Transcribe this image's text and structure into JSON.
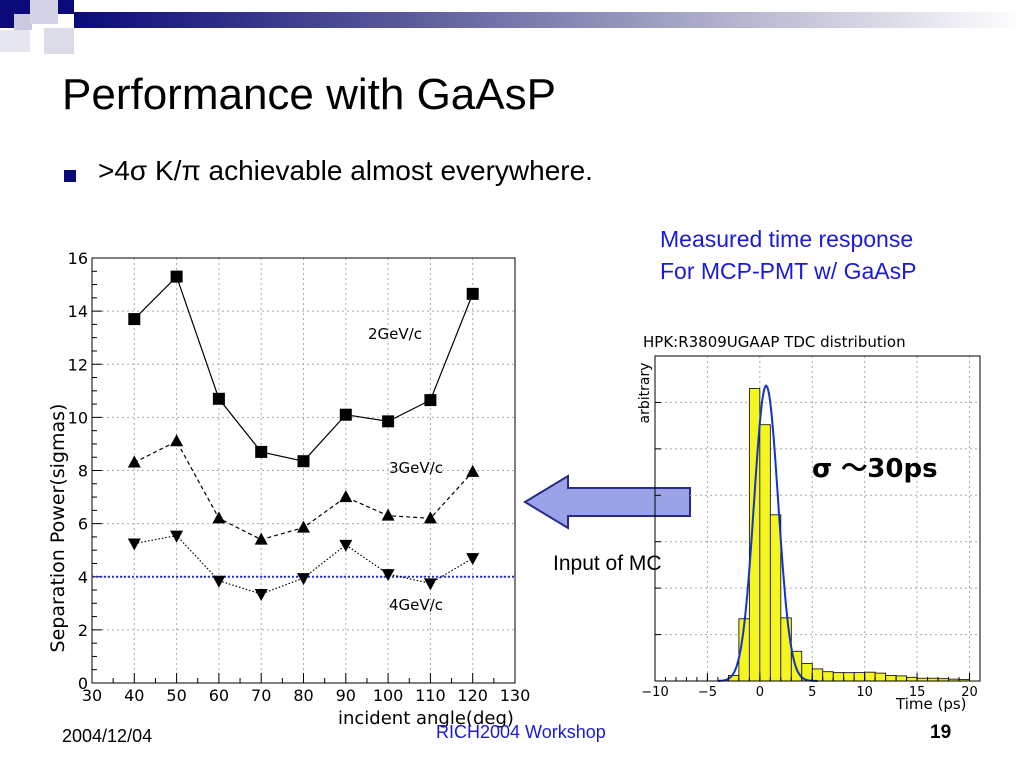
{
  "slide": {
    "title": "Performance with GaAsP",
    "bullet": ">4σ K/π achievable almost everywhere.",
    "measured_line1": "Measured time response",
    "measured_line2": "For MCP-PMT w/ GaAsP",
    "input_mc": "Input of MC",
    "footer_date": "2004/12/04",
    "footer_center": "RICH2004 Workshop",
    "page_number": "19",
    "colors": {
      "header_accent": "#0a0a7a",
      "blue_text": "#1a1ad8",
      "arrow_fill": "#9aa3e8",
      "hist_fill": "#f5f522",
      "threshold": "#2233cc"
    }
  },
  "chart_data": [
    {
      "type": "line",
      "xlabel": "incident angle(deg)",
      "ylabel": "Separation Power(sigmas)",
      "xlim": [
        30,
        130
      ],
      "ylim": [
        0,
        16
      ],
      "xticks": [
        30,
        40,
        50,
        60,
        70,
        80,
        90,
        100,
        110,
        120,
        130
      ],
      "yticks": [
        0,
        2,
        4,
        6,
        8,
        10,
        12,
        14,
        16
      ],
      "grid": true,
      "x": [
        40,
        50,
        60,
        70,
        80,
        90,
        100,
        110,
        120
      ],
      "series": [
        {
          "name": "2GeV/c",
          "marker": "square",
          "line": "solid",
          "values": [
            13.7,
            15.3,
            10.7,
            8.7,
            8.35,
            10.1,
            9.85,
            10.65,
            14.65
          ]
        },
        {
          "name": "3GeV/c",
          "marker": "triangle-up",
          "line": "dashed",
          "values": [
            8.3,
            9.1,
            6.2,
            5.4,
            5.85,
            7.0,
            6.3,
            6.2,
            7.95
          ]
        },
        {
          "name": "4GeV/c",
          "marker": "triangle-down",
          "line": "dotted",
          "values": [
            5.25,
            5.55,
            3.85,
            3.35,
            3.95,
            5.2,
            4.1,
            3.75,
            4.7
          ]
        }
      ],
      "threshold": 4
    },
    {
      "type": "bar",
      "title": "HPK:R3809UGAAP TDC distribution",
      "xlabel": "Time (ps)",
      "ylabel": "arbitrary",
      "xlim": [
        -10,
        21
      ],
      "xticks": [
        -10,
        -5,
        0,
        5,
        10,
        15,
        20
      ],
      "grid": true,
      "annotation": "σ ～30ps",
      "bin_width": 1,
      "bins_start": [
        -10,
        -9,
        -8,
        -7,
        -6,
        -5,
        -4,
        -3,
        -2,
        -1,
        0,
        1,
        2,
        3,
        4,
        5,
        6,
        7,
        8,
        9,
        10,
        11,
        12,
        13,
        14,
        15,
        16,
        17,
        18,
        19,
        20
      ],
      "values": [
        0,
        0,
        0,
        0,
        0,
        0,
        0,
        0.6,
        6.7,
        31.5,
        27.6,
        17.9,
        6.8,
        3.2,
        1.9,
        1.3,
        1.0,
        0.9,
        0.9,
        0.9,
        0.95,
        0.85,
        0.6,
        0.55,
        0.4,
        0.3,
        0.3,
        0.25,
        0.2,
        0.15,
        0
      ],
      "fit": {
        "mean": 0.1,
        "sigma": 1.15,
        "peak": 31.8
      }
    }
  ]
}
